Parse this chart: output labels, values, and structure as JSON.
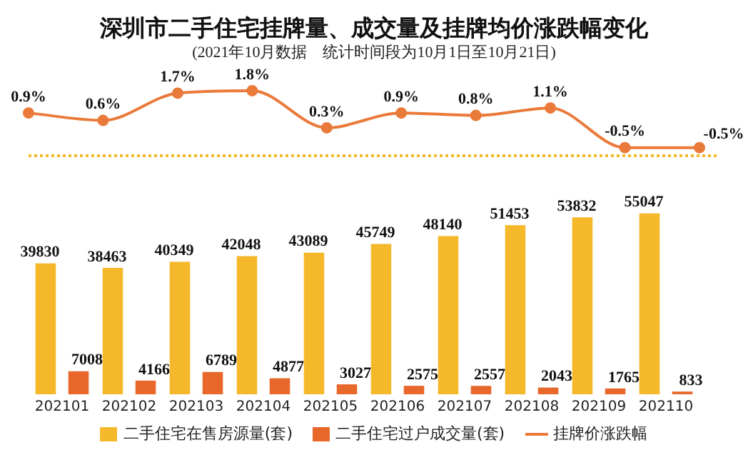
{
  "chart_data": [
    {
      "type": "line",
      "title": "深圳市二手住宅挂牌量、成交量及挂牌均价涨跌幅变化",
      "subtitle": "(2021年10月数据　统计时间段为10月1日至10月21日)",
      "categories": [
        null,
        null,
        null,
        null,
        null,
        null,
        null,
        null,
        null,
        null
      ],
      "series": [
        {
          "name": "挂牌价涨跌幅",
          "color": "#ea7a3a",
          "values": [
            0.9,
            0.6,
            1.7,
            1.8,
            0.3,
            0.9,
            0.8,
            1.1,
            -0.5,
            -0.5
          ],
          "value_labels": [
            "0.9%",
            "0.6%",
            "1.7%",
            "1.8%",
            "0.3%",
            "0.9%",
            "0.8%",
            "1.1%",
            "-0.5%",
            "-0.5%"
          ]
        }
      ],
      "marker": "circle",
      "tick_labels": false,
      "legend": "bottom"
    },
    {
      "type": "bar",
      "categories": [
        "202101",
        "202102",
        "202103",
        "202104",
        "202105",
        "202106",
        "202107",
        "202108",
        "202109",
        "202110"
      ],
      "series": [
        {
          "name": "二手住宅在售房源量(套)",
          "color": "#f5b82a",
          "values": [
            39830,
            38463,
            40349,
            42048,
            43089,
            45749,
            48140,
            51453,
            53832,
            55047
          ]
        },
        {
          "name": "二手住宅过户成交量(套)",
          "color": "#e8672a",
          "values": [
            7008,
            4166,
            6789,
            4877,
            3027,
            2575,
            2557,
            2043,
            1765,
            833
          ]
        }
      ],
      "tick_labels": "x",
      "data_labels": true,
      "legend": "bottom"
    }
  ]
}
